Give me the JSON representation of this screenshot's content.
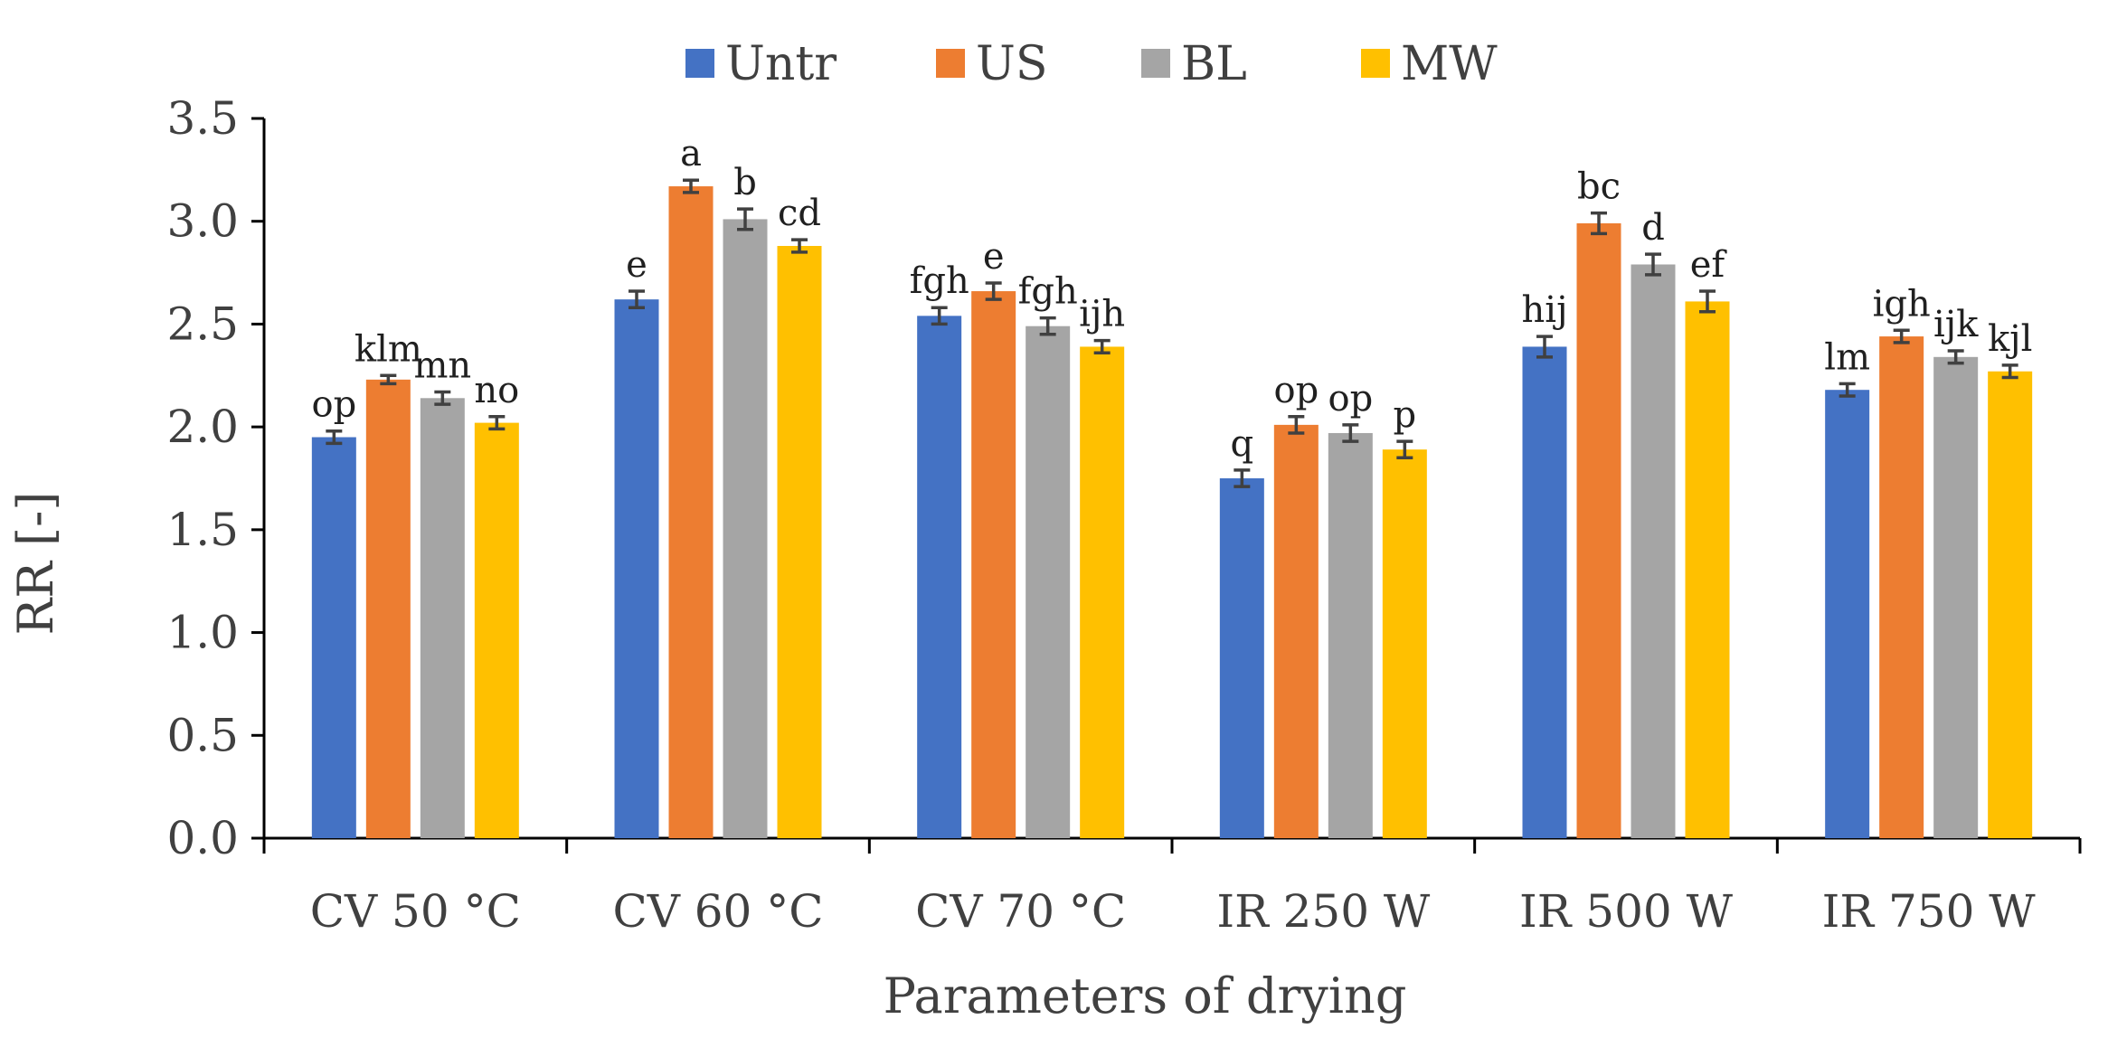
{
  "chart_data": {
    "type": "bar",
    "title": "",
    "xlabel": "Parameters of drying",
    "ylabel": "RR [-]",
    "ylim": [
      0,
      3.5
    ],
    "yticks": [
      "0.0",
      "0.5",
      "1.0",
      "1.5",
      "2.0",
      "2.5",
      "3.0",
      "3.5"
    ],
    "grid": false,
    "legend_position": "top-center",
    "categories": [
      "CV 50 °C",
      "CV 60 °C",
      "CV 70 °C",
      "IR 250 W",
      "IR 500 W",
      "IR 750 W"
    ],
    "series": [
      {
        "name": "Untr",
        "color": "#4472C4",
        "values": [
          1.95,
          2.62,
          2.54,
          1.75,
          2.39,
          2.18
        ],
        "errors": [
          0.03,
          0.04,
          0.04,
          0.04,
          0.05,
          0.03
        ],
        "labels": [
          "op",
          "e",
          "fgh",
          "q",
          "hij",
          "lm"
        ]
      },
      {
        "name": "US",
        "color": "#ED7D31",
        "values": [
          2.23,
          3.17,
          2.66,
          2.01,
          2.99,
          2.44
        ],
        "errors": [
          0.02,
          0.03,
          0.04,
          0.04,
          0.05,
          0.03
        ],
        "labels": [
          "klm",
          "a",
          "e",
          "op",
          "bc",
          "igh"
        ]
      },
      {
        "name": "BL",
        "color": "#A5A5A5",
        "values": [
          2.14,
          3.01,
          2.49,
          1.97,
          2.79,
          2.34
        ],
        "errors": [
          0.03,
          0.05,
          0.04,
          0.04,
          0.05,
          0.03
        ],
        "labels": [
          "mn",
          "b",
          "fgh",
          "op",
          "d",
          "ijk"
        ]
      },
      {
        "name": "MW",
        "color": "#FFC000",
        "values": [
          2.02,
          2.88,
          2.39,
          1.89,
          2.61,
          2.27
        ],
        "errors": [
          0.03,
          0.03,
          0.03,
          0.04,
          0.05,
          0.03
        ],
        "labels": [
          "no",
          "cd",
          "ijh",
          "p",
          "ef",
          "kjl"
        ]
      }
    ]
  }
}
